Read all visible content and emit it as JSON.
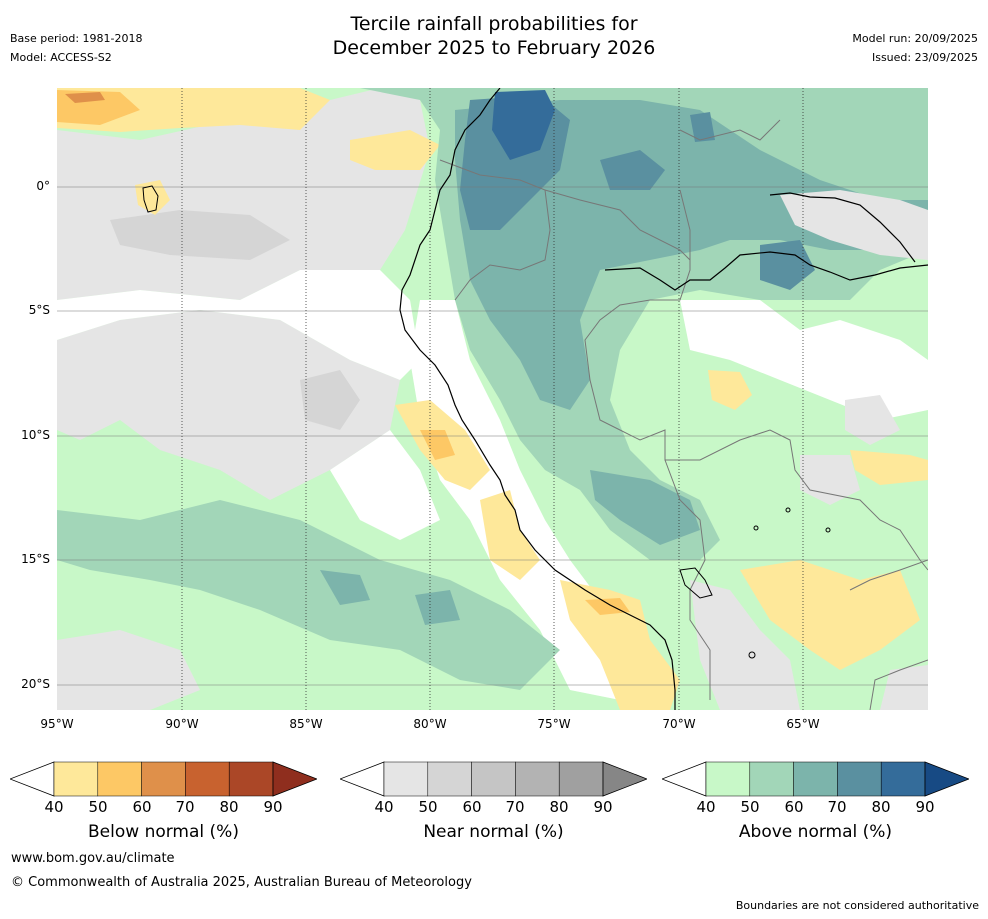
{
  "header": {
    "title_line1": "Tercile rainfall probabilities for",
    "title_line2": "December 2025 to February 2026",
    "base_period": "Base period: 1981-2018",
    "model": "Model: ACCESS-S2",
    "model_run": "Model run: 20/09/2025",
    "issued": "Issued: 23/09/2025"
  },
  "map": {
    "region": "Western South America (Ecuador, Peru, northern Chile, western Brazil, Bolivia)",
    "lat_ticks": [
      "0°",
      "5°S",
      "10°S",
      "15°S",
      "20°S"
    ],
    "lon_ticks": [
      "95°W",
      "90°W",
      "85°W",
      "80°W",
      "75°W",
      "70°W",
      "65°W"
    ]
  },
  "legends": [
    {
      "label": "Below normal (%)",
      "ticks": [
        "40",
        "50",
        "60",
        "70",
        "80",
        "90"
      ],
      "colors": [
        "#ffffff",
        "#fee89a",
        "#fdc865",
        "#df904a",
        "#c8622f",
        "#ab4727",
        "#8f2e1e"
      ]
    },
    {
      "label": "Near normal (%)",
      "ticks": [
        "40",
        "50",
        "60",
        "70",
        "80",
        "90"
      ],
      "colors": [
        "#ffffff",
        "#e5e5e5",
        "#d5d5d5",
        "#c5c5c5",
        "#b3b3b3",
        "#a0a0a0",
        "#868686"
      ]
    },
    {
      "label": "Above normal (%)",
      "ticks": [
        "40",
        "50",
        "60",
        "70",
        "80",
        "90"
      ],
      "colors": [
        "#ffffff",
        "#c8f8c8",
        "#a2d6b8",
        "#7cb4ab",
        "#5a90a0",
        "#346c9a",
        "#174a84"
      ]
    }
  ],
  "footer": {
    "url": "www.bom.gov.au/climate",
    "copyright": "© Commonwealth of Australia 2025, Australian Bureau of Meteorology",
    "note": "Boundaries are not considered authoritative"
  }
}
